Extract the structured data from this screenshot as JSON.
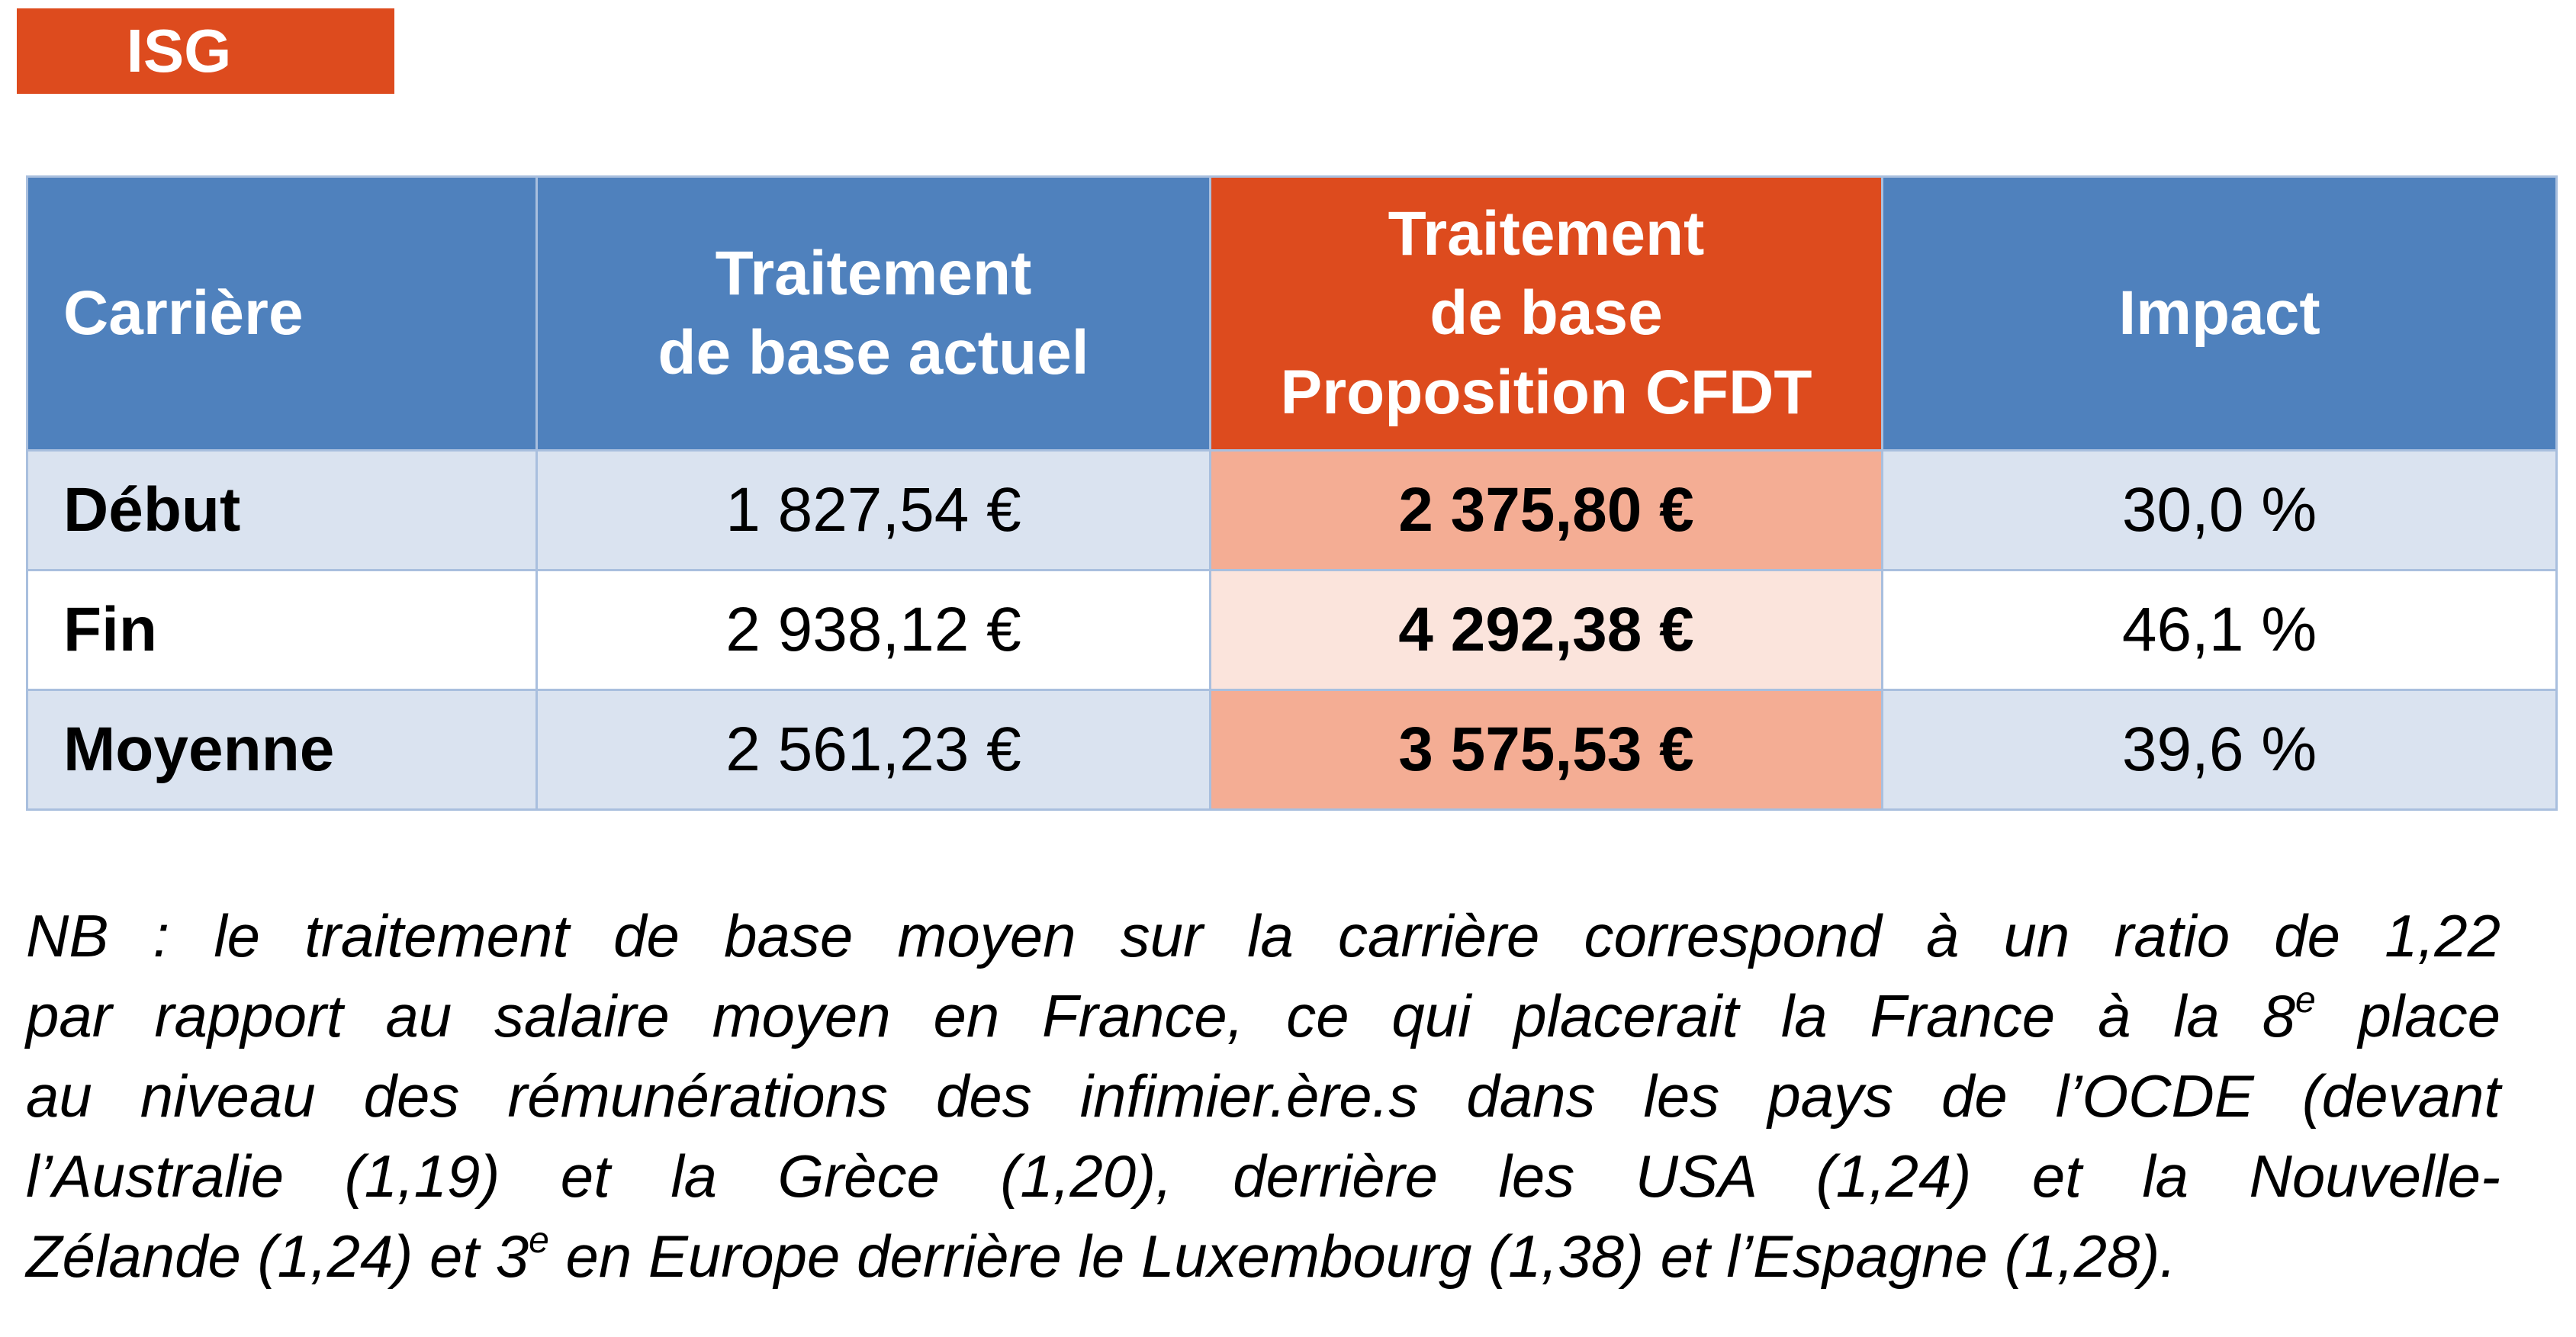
{
  "badge": "ISG",
  "table": {
    "header": [
      "Carrière",
      "Traitement\nde base actuel",
      "Traitement\nde base\nProposition CFDT",
      "Impact"
    ],
    "rows": [
      [
        "Début",
        "1 827,54 €",
        "2 375,80 €",
        "30,0 %"
      ],
      [
        "Fin",
        "2 938,12 €",
        "4 292,38 €",
        "46,1 %"
      ],
      [
        "Moyenne",
        "2 561,23 €",
        "3 575,53 €",
        "39,6 %"
      ]
    ]
  },
  "nb": {
    "line_1": "NB : le traitement de base moyen sur la carrière correspond à un ratio de 1,22",
    "line_2": {
      "before": "par rapport au salaire moyen en France, ce qui placerait la France à la 8",
      "sup": "e",
      "after": " place"
    },
    "line_3": "au niveau des rémunérations des infimier.ère.s dans les pays de l’OCDE (devant",
    "line_4": "l’Australie (1,19) et la Grèce (1,20), derrière les USA (1,24) et la Nouvelle-",
    "line_5": {
      "before": "Zélande (1,24) et 3",
      "sup": "e",
      "after": " en Europe derrière le Luxembourg (1,38) et l’Espagne (1,28)."
    }
  }
}
